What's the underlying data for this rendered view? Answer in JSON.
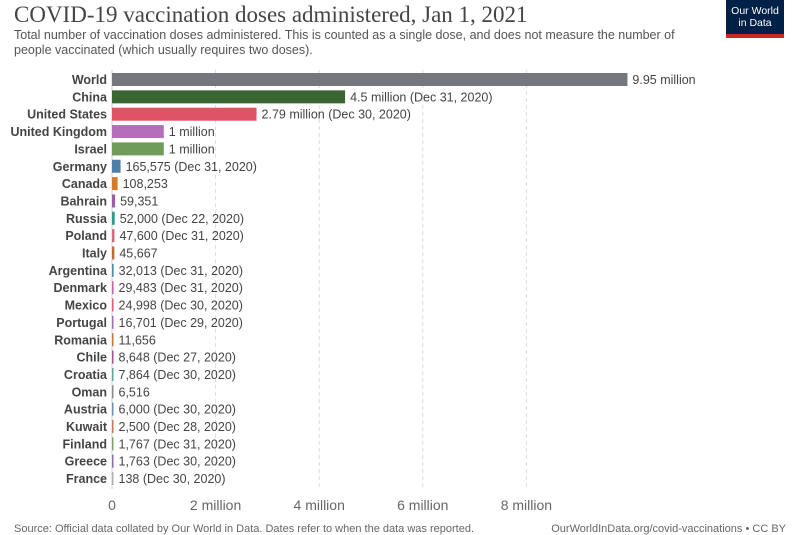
{
  "header": {
    "title": "COVID-19 vaccination doses administered, Jan 1, 2021",
    "subtitle": "Total number of vaccination doses administered. This is counted as a single dose, and does not measure the number of people vaccinated (which usually requires two doses).",
    "logo_line1": "Our World",
    "logo_line2": "in Data"
  },
  "footer": {
    "source": "Source: Official data collated by Our World in Data. Dates refer to when the data was reported.",
    "url": "OurWorldInData.org/covid-vaccinations • CC BY"
  },
  "colors": {
    "World": "#74787c",
    "China": "#3c6534",
    "United States": "#e05266",
    "United Kingdom": "#b36fb8",
    "Israel": "#6f9c5a",
    "Germany": "#4e7fa8",
    "Canada": "#d07b2d",
    "Bahrain": "#9d5ea3",
    "Russia": "#2e9a8a",
    "Poland": "#cf6c7d",
    "Italy": "#bf6b3a",
    "Argentina": "#4e8dab",
    "Denmark": "#c65fa7",
    "Mexico": "#e15c78",
    "Portugal": "#9d70b8",
    "Romania": "#c9753c",
    "Chile": "#a3528c",
    "Croatia": "#5aa79a",
    "Oman": "#8a8a8a",
    "Austria": "#6f8fb8",
    "Kuwait": "#c27b5a",
    "Finland": "#7aa36b",
    "Greece": "#8a6fb0",
    "France": "#b0b0b0"
  },
  "chart_data": {
    "type": "bar",
    "orientation": "horizontal",
    "title": "COVID-19 vaccination doses administered, Jan 1, 2021",
    "xlim": [
      0,
      10000000
    ],
    "x_ticks": [
      {
        "value": 0,
        "label": "0"
      },
      {
        "value": 2000000,
        "label": "2 million"
      },
      {
        "value": 4000000,
        "label": "4 million"
      },
      {
        "value": 6000000,
        "label": "6 million"
      },
      {
        "value": 8000000,
        "label": "8 million"
      }
    ],
    "grid": true,
    "categories": [
      "World",
      "China",
      "United States",
      "United Kingdom",
      "Israel",
      "Germany",
      "Canada",
      "Bahrain",
      "Russia",
      "Poland",
      "Italy",
      "Argentina",
      "Denmark",
      "Mexico",
      "Portugal",
      "Romania",
      "Chile",
      "Croatia",
      "Oman",
      "Austria",
      "Kuwait",
      "Finland",
      "Greece",
      "France"
    ],
    "values": [
      9950000,
      4500000,
      2790000,
      1000000,
      1000000,
      165575,
      108253,
      59351,
      52000,
      47600,
      45667,
      32013,
      29483,
      24998,
      16701,
      11656,
      8648,
      7864,
      6516,
      6000,
      2500,
      1767,
      1763,
      138
    ],
    "value_labels": [
      "9.95 million",
      "4.5 million (Dec 31, 2020)",
      "2.79 million (Dec 30, 2020)",
      "1 million",
      "1 million",
      "165,575 (Dec 31, 2020)",
      "108,253",
      "59,351",
      "52,000 (Dec 22, 2020)",
      "47,600 (Dec 31, 2020)",
      "45,667",
      "32,013 (Dec 31, 2020)",
      "29,483 (Dec 31, 2020)",
      "24,998 (Dec 30, 2020)",
      "16,701 (Dec 29, 2020)",
      "11,656",
      "8,648 (Dec 27, 2020)",
      "7,864 (Dec 30, 2020)",
      "6,516",
      "6,000 (Dec 30, 2020)",
      "2,500 (Dec 28, 2020)",
      "1,767 (Dec 31, 2020)",
      "1,763 (Dec 30, 2020)",
      "138 (Dec 30, 2020)"
    ]
  }
}
